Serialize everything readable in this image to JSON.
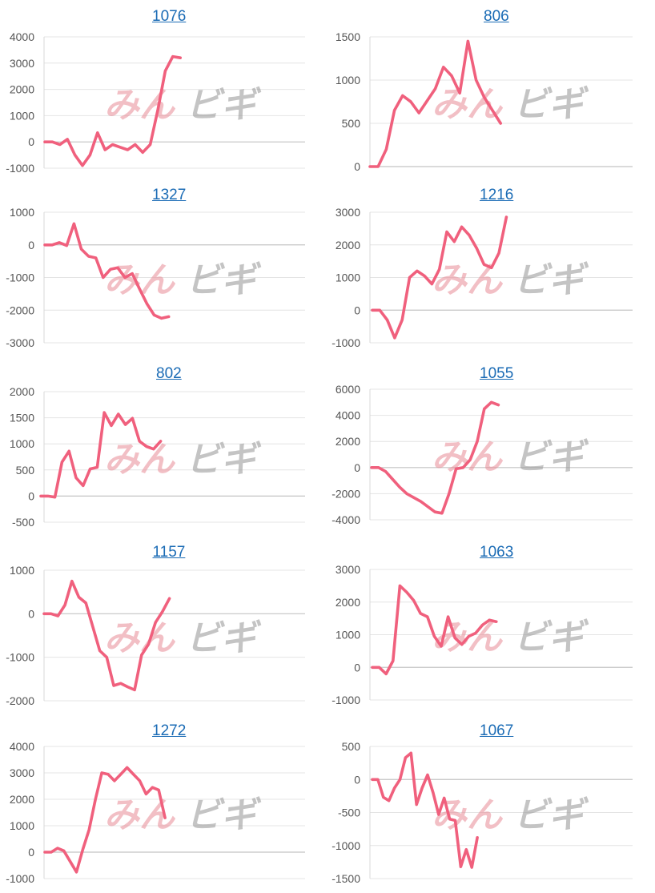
{
  "watermark": {
    "part1": "みん",
    "part2": "ビギ"
  },
  "chart_data": [
    {
      "type": "line",
      "title": "1076",
      "ylim": [
        -1000,
        4000
      ],
      "yticks": [
        4000,
        3000,
        2000,
        1000,
        0,
        -1000
      ],
      "series": [
        {
          "values": [
            0,
            0,
            -100,
            100,
            -500,
            -900,
            -500,
            350,
            -300,
            -100,
            -200,
            -300,
            -100,
            -400,
            -100,
            1200,
            2700,
            3250,
            3200
          ]
        }
      ]
    },
    {
      "type": "line",
      "title": "806",
      "ylim": [
        0,
        1500
      ],
      "yticks": [
        1500,
        1000,
        500,
        0
      ],
      "series": [
        {
          "values": [
            0,
            0,
            200,
            650,
            820,
            750,
            620,
            760,
            900,
            1150,
            1050,
            850,
            1450,
            1000,
            800,
            650,
            500
          ]
        }
      ]
    },
    {
      "type": "line",
      "title": "1327",
      "ylim": [
        -3000,
        1000
      ],
      "yticks": [
        1000,
        0,
        -1000,
        -2000,
        -3000
      ],
      "series": [
        {
          "values": [
            0,
            0,
            70,
            -20,
            650,
            -130,
            -350,
            -400,
            -1000,
            -750,
            -700,
            -1000,
            -880,
            -1350,
            -1800,
            -2150,
            -2250,
            -2200
          ]
        }
      ]
    },
    {
      "type": "line",
      "title": "1216",
      "ylim": [
        -1000,
        3000
      ],
      "yticks": [
        3000,
        2000,
        1000,
        0,
        -1000
      ],
      "series": [
        {
          "values": [
            0,
            0,
            -300,
            -850,
            -300,
            1000,
            1200,
            1050,
            800,
            1250,
            2400,
            2100,
            2550,
            2300,
            1900,
            1400,
            1300,
            1750,
            2850
          ]
        }
      ]
    },
    {
      "type": "line",
      "title": "802",
      "ylim": [
        -500,
        2000
      ],
      "yticks": [
        2000,
        1500,
        1000,
        500,
        0,
        -500
      ],
      "series": [
        {
          "values": [
            0,
            0,
            -20,
            650,
            860,
            350,
            200,
            520,
            550,
            1600,
            1350,
            1570,
            1370,
            1490,
            1050,
            950,
            900,
            1050
          ]
        }
      ]
    },
    {
      "type": "line",
      "title": "1055",
      "ylim": [
        -4000,
        6000
      ],
      "yticks": [
        6000,
        4000,
        2000,
        0,
        -2000,
        -4000
      ],
      "series": [
        {
          "values": [
            0,
            0,
            -300,
            -900,
            -1500,
            -2000,
            -2300,
            -2600,
            -3000,
            -3400,
            -3500,
            -2000,
            -100,
            0,
            600,
            2000,
            4500,
            5000,
            4800
          ]
        }
      ]
    },
    {
      "type": "line",
      "title": "1157",
      "ylim": [
        -2000,
        1000
      ],
      "yticks": [
        1000,
        0,
        -1000,
        -2000
      ],
      "series": [
        {
          "values": [
            0,
            0,
            -50,
            200,
            750,
            380,
            250,
            -300,
            -850,
            -1000,
            -1650,
            -1600,
            -1680,
            -1750,
            -950,
            -700,
            -200,
            50,
            350
          ]
        }
      ]
    },
    {
      "type": "line",
      "title": "1063",
      "ylim": [
        -1000,
        3000
      ],
      "yticks": [
        3000,
        2000,
        1000,
        0,
        -1000
      ],
      "series": [
        {
          "values": [
            0,
            0,
            -200,
            200,
            2500,
            2300,
            2050,
            1650,
            1550,
            950,
            650,
            1550,
            900,
            700,
            950,
            1050,
            1300,
            1450,
            1400
          ]
        }
      ]
    },
    {
      "type": "line",
      "title": "1272",
      "ylim": [
        -1000,
        4000
      ],
      "yticks": [
        4000,
        3000,
        2000,
        1000,
        0,
        -1000
      ],
      "series": [
        {
          "values": [
            0,
            0,
            150,
            50,
            -350,
            -750,
            100,
            850,
            2000,
            3000,
            2950,
            2700,
            2950,
            3200,
            2950,
            2700,
            2200,
            2450,
            2350,
            1300
          ]
        }
      ]
    },
    {
      "type": "line",
      "title": "1067",
      "ylim": [
        -1500,
        500
      ],
      "yticks": [
        500,
        0,
        -500,
        -1000,
        -1500
      ],
      "series": [
        {
          "values": [
            0,
            0,
            -270,
            -320,
            -130,
            0,
            330,
            400,
            -380,
            -130,
            70,
            -200,
            -530,
            -280,
            -600,
            -620,
            -1320,
            -1060,
            -1330,
            -880
          ]
        }
      ]
    }
  ]
}
